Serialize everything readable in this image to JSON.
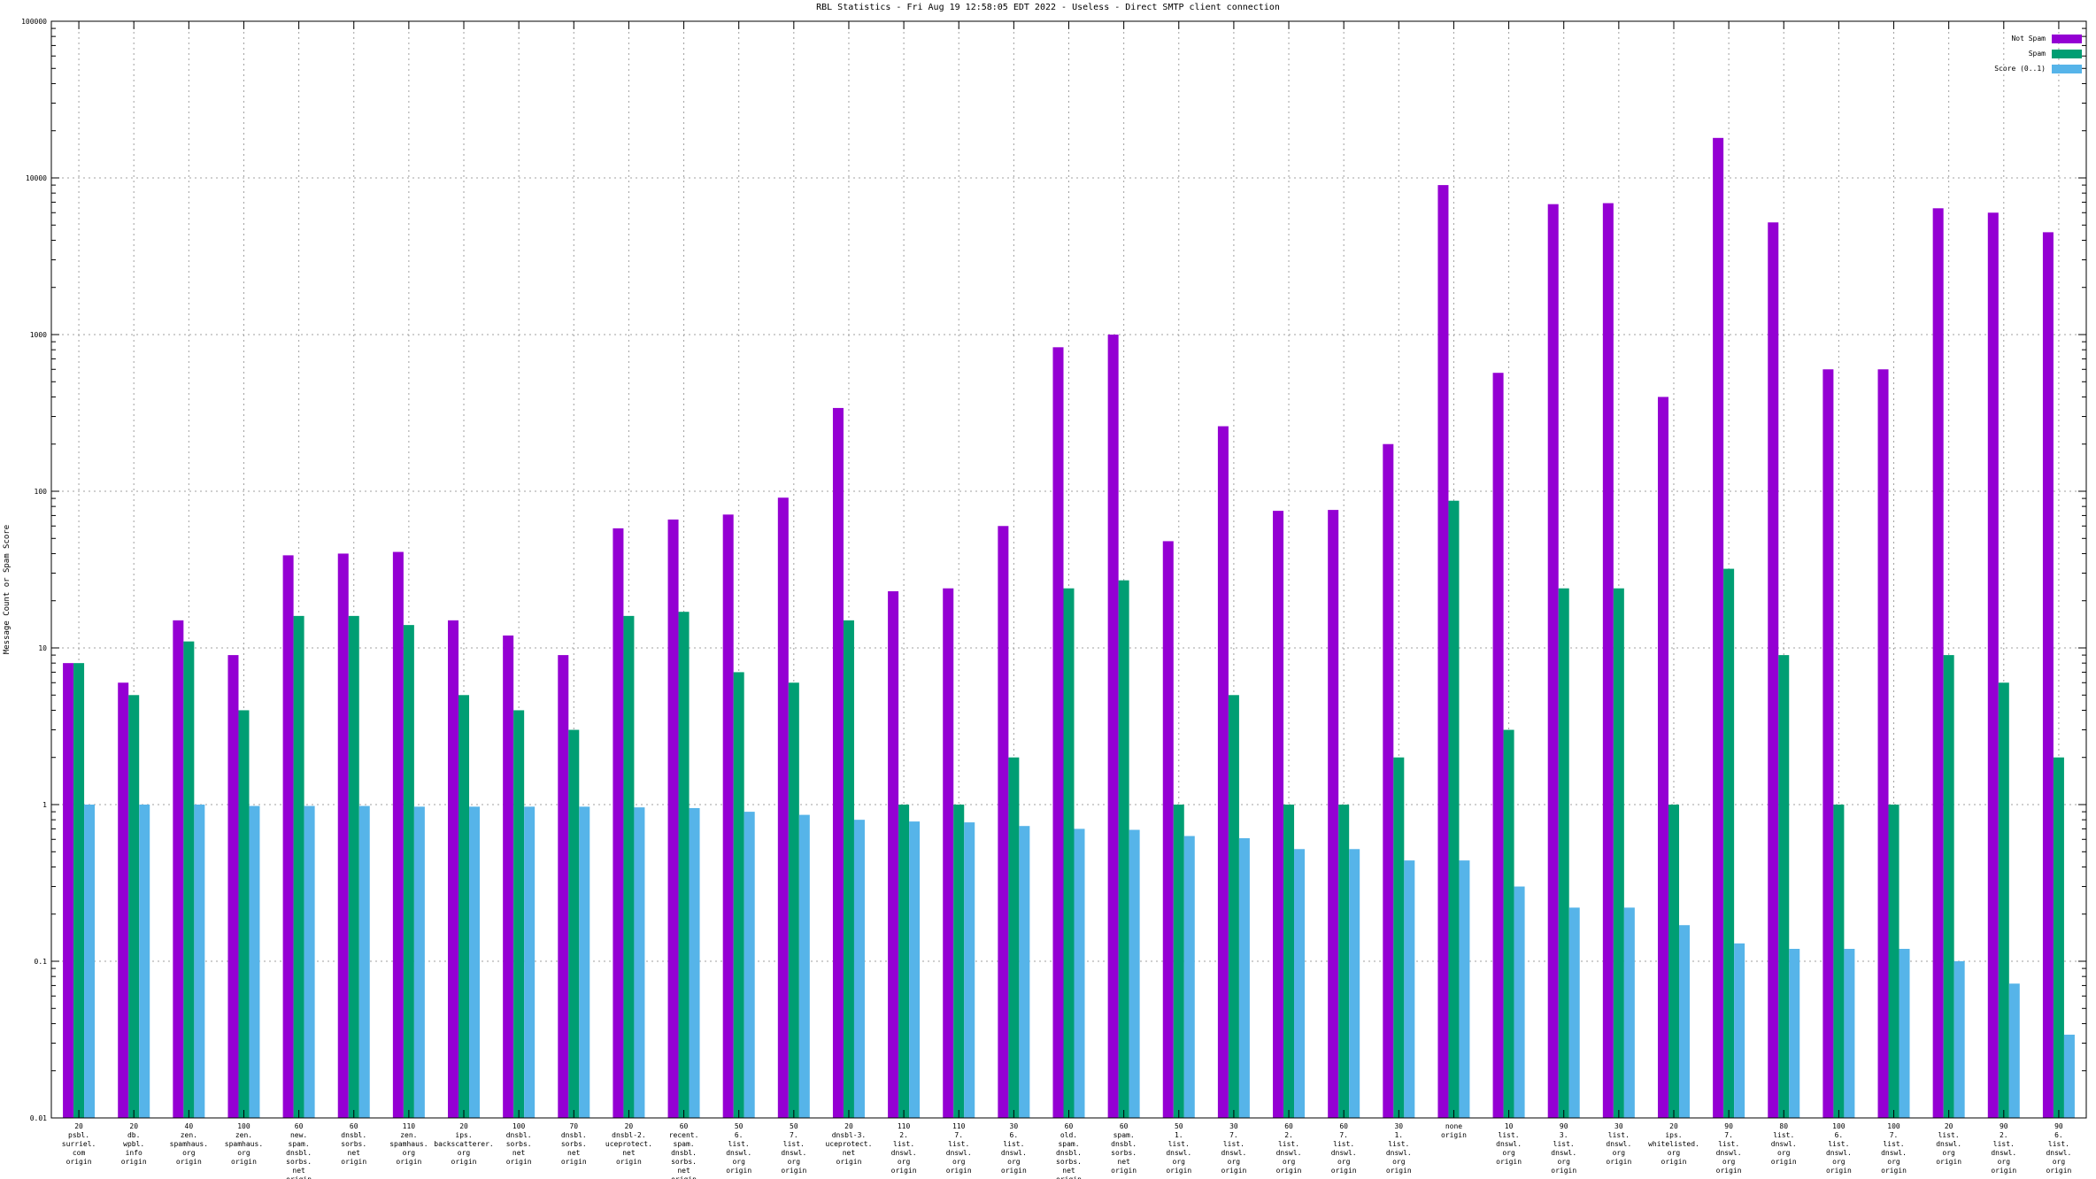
{
  "chart_data": {
    "type": "bar",
    "title": "RBL Statistics - Fri Aug 19 12:58:05 EDT 2022 - Useless - Direct SMTP client connection",
    "xlabel": "",
    "ylabel": "Message Count or Spam Score",
    "yscale": "log",
    "ylim": [
      0.01,
      100000
    ],
    "yticks": [
      "0.01",
      "0.1",
      "1",
      "10",
      "100",
      "1000",
      "10000",
      "100000"
    ],
    "grid": true,
    "legend_position": "top-right",
    "categories": [
      [
        "20",
        "psbl.",
        "surriel.",
        "com",
        "origin"
      ],
      [
        "20",
        "db.",
        "wpbl.",
        "info",
        "origin"
      ],
      [
        "40",
        "zen.",
        "spamhaus.",
        "org",
        "origin"
      ],
      [
        "100",
        "zen.",
        "spamhaus.",
        "org",
        "origin"
      ],
      [
        "60",
        "new.",
        "spam.",
        "dnsbl.",
        "sorbs.",
        "net",
        "origin"
      ],
      [
        "60",
        "dnsbl.",
        "sorbs.",
        "net",
        "origin"
      ],
      [
        "110",
        "zen.",
        "spamhaus.",
        "org",
        "origin"
      ],
      [
        "20",
        "ips.",
        "backscatterer.",
        "org",
        "origin"
      ],
      [
        "100",
        "dnsbl.",
        "sorbs.",
        "net",
        "origin"
      ],
      [
        "70",
        "dnsbl.",
        "sorbs.",
        "net",
        "origin"
      ],
      [
        "20",
        "dnsbl-2.",
        "uceprotect.",
        "net",
        "origin"
      ],
      [
        "60",
        "recent.",
        "spam.",
        "dnsbl.",
        "sorbs.",
        "net",
        "origin"
      ],
      [
        "50",
        "6.",
        "list.",
        "dnswl.",
        "org",
        "origin"
      ],
      [
        "50",
        "7.",
        "list.",
        "dnswl.",
        "org",
        "origin"
      ],
      [
        "20",
        "dnsbl-3.",
        "uceprotect.",
        "net",
        "origin"
      ],
      [
        "110",
        "2.",
        "list.",
        "dnswl.",
        "org",
        "origin"
      ],
      [
        "110",
        "7.",
        "list.",
        "dnswl.",
        "org",
        "origin"
      ],
      [
        "30",
        "6.",
        "list.",
        "dnswl.",
        "org",
        "origin"
      ],
      [
        "60",
        "old.",
        "spam.",
        "dnsbl.",
        "sorbs.",
        "net",
        "origin"
      ],
      [
        "60",
        "spam.",
        "dnsbl.",
        "sorbs.",
        "net",
        "origin"
      ],
      [
        "50",
        "1.",
        "list.",
        "dnswl.",
        "org",
        "origin"
      ],
      [
        "30",
        "7.",
        "list.",
        "dnswl.",
        "org",
        "origin"
      ],
      [
        "60",
        "2.",
        "list.",
        "dnswl.",
        "org",
        "origin"
      ],
      [
        "60",
        "7.",
        "list.",
        "dnswl.",
        "org",
        "origin"
      ],
      [
        "30",
        "1.",
        "list.",
        "dnswl.",
        "org",
        "origin"
      ],
      [
        "none",
        "origin"
      ],
      [
        "10",
        "list.",
        "dnswl.",
        "org",
        "origin"
      ],
      [
        "90",
        "3.",
        "list.",
        "dnswl.",
        "org",
        "origin"
      ],
      [
        "30",
        "list.",
        "dnswl.",
        "org",
        "origin"
      ],
      [
        "20",
        "ips.",
        "whitelisted.",
        "org",
        "origin"
      ],
      [
        "90",
        "7.",
        "list.",
        "dnswl.",
        "org",
        "origin"
      ],
      [
        "80",
        "list.",
        "dnswl.",
        "org",
        "origin"
      ],
      [
        "100",
        "6.",
        "list.",
        "dnswl.",
        "org",
        "origin"
      ],
      [
        "100",
        "7.",
        "list.",
        "dnswl.",
        "org",
        "origin"
      ],
      [
        "20",
        "list.",
        "dnswl.",
        "org",
        "origin"
      ],
      [
        "90",
        "2.",
        "list.",
        "dnswl.",
        "org",
        "origin"
      ],
      [
        "90",
        "6.",
        "list.",
        "dnswl.",
        "org",
        "origin"
      ]
    ],
    "series": [
      {
        "name": "Not Spam",
        "color": "#9400d3",
        "values": [
          8,
          6,
          15,
          9,
          39,
          40,
          41,
          15,
          12,
          9,
          58,
          66,
          71,
          91,
          340,
          23,
          24,
          60,
          830,
          1000,
          48,
          260,
          75,
          76,
          200,
          9000,
          570,
          6800,
          6900,
          400,
          18000,
          5200,
          600,
          600,
          6400,
          6000,
          4500
        ]
      },
      {
        "name": "Spam",
        "color": "#009e73",
        "values": [
          8,
          5,
          11,
          4,
          16,
          16,
          14,
          5,
          4,
          3,
          16,
          17,
          7,
          6,
          15,
          1,
          1,
          2,
          24,
          27,
          1,
          5,
          1,
          1,
          2,
          87,
          3,
          24,
          24,
          1,
          32,
          9,
          1,
          1,
          9,
          6,
          2
        ]
      },
      {
        "name": "Score (0..1)",
        "color": "#56b4e9",
        "values": [
          1.0,
          1.0,
          1.0,
          0.98,
          0.98,
          0.98,
          0.97,
          0.97,
          0.97,
          0.97,
          0.96,
          0.95,
          0.9,
          0.86,
          0.8,
          0.78,
          0.77,
          0.73,
          0.7,
          0.69,
          0.63,
          0.61,
          0.52,
          0.52,
          0.44,
          0.44,
          0.3,
          0.22,
          0.22,
          0.17,
          0.13,
          0.12,
          0.12,
          0.12,
          0.1,
          0.072,
          0.034
        ]
      }
    ]
  }
}
